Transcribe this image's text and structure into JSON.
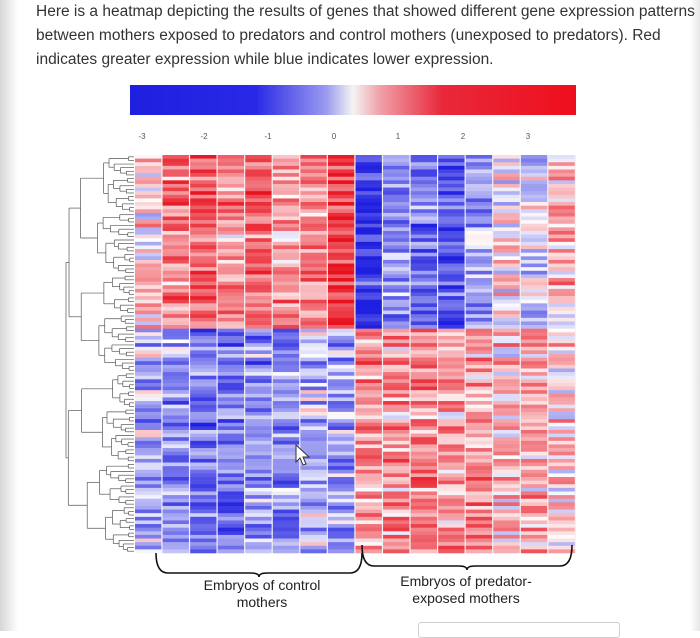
{
  "intro_text": "Here is a heatmap depicting the results of genes that showed different gene expression patterns between mothers exposed to predators and control mothers (unexposed to predators). Red indicates greater expression while blue indicates lower expression.",
  "colors": {
    "low": "#1f1fe0",
    "mid": "#ffffff",
    "high": "#e8111e",
    "dendrogram": "#555555"
  },
  "chart_data": {
    "type": "heatmap",
    "title": "",
    "colorbar": {
      "ticks": [
        "-3",
        "-2",
        "-1",
        "0",
        "1",
        "2",
        "3"
      ],
      "range": [
        -3,
        3
      ]
    },
    "columns": 16,
    "column_groups": [
      {
        "label_line1": "Embryos of control",
        "label_line2": "mothers",
        "columns": 8
      },
      {
        "label_line1": "Embryos of predator-",
        "label_line2": "exposed mothers",
        "columns": 8
      }
    ],
    "dendrogram": "rows",
    "pattern": {
      "upper_cluster": "control columns mostly red (high), predator columns mostly blue (low)",
      "lower_cluster": "control columns mostly blue (low), predator columns mostly red (high)"
    }
  }
}
